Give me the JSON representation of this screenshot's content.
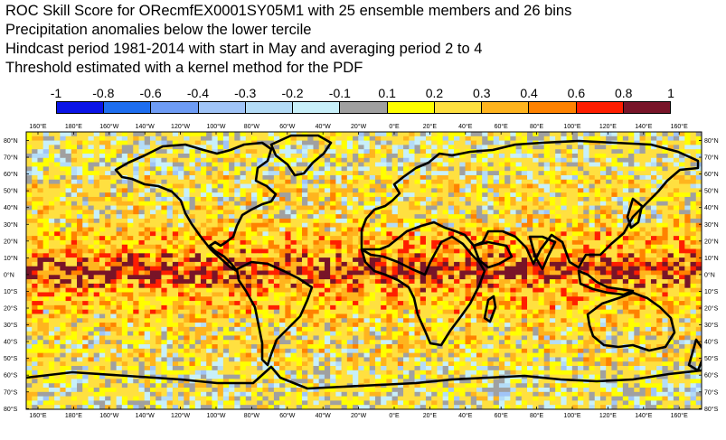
{
  "title_lines": [
    "ROC Skill Score for ORecmfEX0001SY05M1 with 25 ensemble members and 26 bins",
    "Precipitation anomalies below the lower tercile",
    "Hindcast period 1981-2014 with start in May and averaging period  2 to  4",
    "Threshold estimated with a kernel method for the PDF"
  ],
  "colorbar": {
    "labels": [
      "-1",
      "-0.8",
      "-0.6",
      "-0.4",
      "-0.3",
      "-0.2",
      "-0.1",
      "0.1",
      "0.2",
      "0.3",
      "0.4",
      "0.6",
      "0.8",
      "1"
    ],
    "colors": [
      "#0a14e6",
      "#1e6ef0",
      "#6e9cf5",
      "#a0c4f7",
      "#b4dcf7",
      "#c8f0fa",
      "#a0a0a0",
      "#ffff00",
      "#ffe040",
      "#ffb41e",
      "#ff8200",
      "#ff1e00",
      "#781428"
    ]
  },
  "map": {
    "lon_labels": [
      "160°E",
      "180°E",
      "160°W",
      "140°W",
      "120°W",
      "100°W",
      "80°W",
      "60°W",
      "40°W",
      "20°W",
      "0°E",
      "20°E",
      "40°E",
      "60°E",
      "80°E",
      "100°E",
      "120°E",
      "140°E",
      "160°E"
    ],
    "lat_labels": [
      "80°N",
      "70°N",
      "60°N",
      "50°N",
      "40°N",
      "30°N",
      "20°N",
      "10°N",
      "0°N",
      "10°S",
      "20°S",
      "30°S",
      "40°S",
      "50°S",
      "60°S",
      "70°S",
      "80°S"
    ]
  }
}
